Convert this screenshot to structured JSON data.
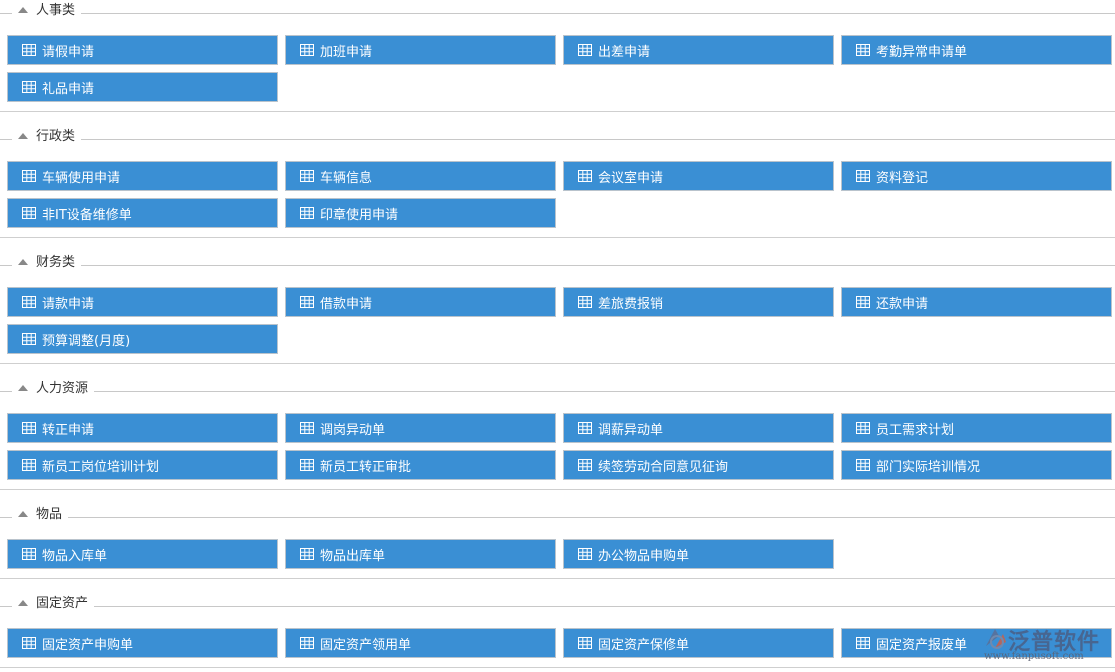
{
  "sections": [
    {
      "title": "人事类",
      "items": [
        "请假申请",
        "加班申请",
        "出差申请",
        "考勤异常申请单",
        "礼品申请"
      ]
    },
    {
      "title": "行政类",
      "items": [
        "车辆使用申请",
        "车辆信息",
        "会议室申请",
        "资料登记",
        "非IT设备维修单",
        "印章使用申请"
      ]
    },
    {
      "title": "财务类",
      "items": [
        "请款申请",
        "借款申请",
        "差旅费报销",
        "还款申请",
        "预算调整(月度)"
      ]
    },
    {
      "title": "人力资源",
      "items": [
        "转正申请",
        "调岗异动单",
        "调薪异动单",
        "员工需求计划",
        "新员工岗位培训计划",
        "新员工转正审批",
        "续签劳动合同意见征询",
        "部门实际培训情况"
      ]
    },
    {
      "title": "物品",
      "items": [
        "物品入库单",
        "物品出库单",
        "办公物品申购单"
      ]
    },
    {
      "title": "固定资产",
      "items": [
        "固定资产申购单",
        "固定资产领用单",
        "固定资产保修单",
        "固定资产报废单"
      ]
    }
  ],
  "icons": {
    "section_toggle": "triangle-up-icon",
    "item": "table-grid-icon"
  },
  "colors": {
    "button_bg": "#3a8fd4",
    "button_text": "#ffffff",
    "divider": "#cfcfcf"
  },
  "watermark": {
    "name": "泛普软件",
    "url": "www.fanpusoft.com"
  }
}
